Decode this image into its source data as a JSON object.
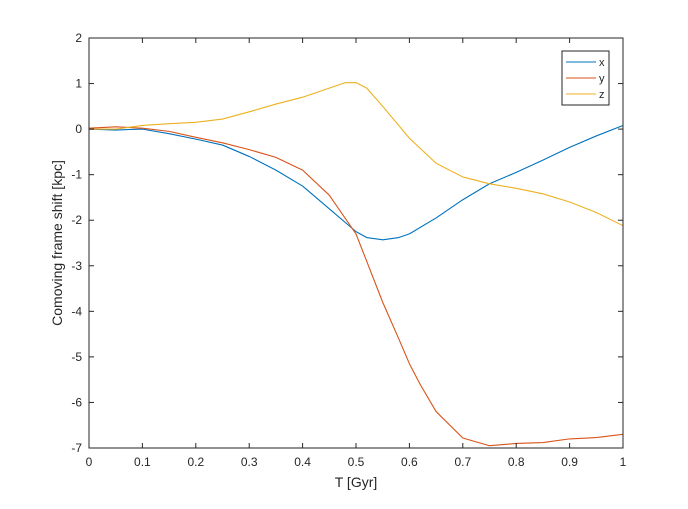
{
  "chart_data": {
    "type": "line",
    "xlabel": "T [Gyr]",
    "ylabel": "Comoving frame shift [kpc]",
    "xlim": [
      0,
      1
    ],
    "ylim": [
      -7,
      2
    ],
    "xticks": [
      "0",
      "0.1",
      "0.2",
      "0.3",
      "0.4",
      "0.5",
      "0.6",
      "0.7",
      "0.8",
      "0.9",
      "1"
    ],
    "yticks": [
      "2",
      "1",
      "0",
      "-1",
      "-2",
      "-3",
      "-4",
      "-5",
      "-6",
      "-7"
    ],
    "grid": false,
    "legend_position": "top-right",
    "series": [
      {
        "name": "x",
        "color": "#0072BD",
        "points": [
          [
            0,
            0.0
          ],
          [
            0.05,
            -0.02
          ],
          [
            0.1,
            0.0
          ],
          [
            0.15,
            -0.1
          ],
          [
            0.2,
            -0.22
          ],
          [
            0.25,
            -0.35
          ],
          [
            0.3,
            -0.6
          ],
          [
            0.35,
            -0.9
          ],
          [
            0.4,
            -1.25
          ],
          [
            0.45,
            -1.75
          ],
          [
            0.5,
            -2.25
          ],
          [
            0.52,
            -2.38
          ],
          [
            0.55,
            -2.43
          ],
          [
            0.58,
            -2.38
          ],
          [
            0.6,
            -2.3
          ],
          [
            0.65,
            -1.95
          ],
          [
            0.7,
            -1.55
          ],
          [
            0.75,
            -1.2
          ],
          [
            0.8,
            -0.95
          ],
          [
            0.85,
            -0.68
          ],
          [
            0.9,
            -0.4
          ],
          [
            0.95,
            -0.15
          ],
          [
            1.0,
            0.08
          ]
        ]
      },
      {
        "name": "y",
        "color": "#D95319",
        "points": [
          [
            0,
            0.02
          ],
          [
            0.05,
            0.05
          ],
          [
            0.1,
            0.02
          ],
          [
            0.15,
            -0.05
          ],
          [
            0.2,
            -0.18
          ],
          [
            0.25,
            -0.3
          ],
          [
            0.3,
            -0.45
          ],
          [
            0.35,
            -0.62
          ],
          [
            0.4,
            -0.9
          ],
          [
            0.45,
            -1.45
          ],
          [
            0.5,
            -2.3
          ],
          [
            0.52,
            -2.9
          ],
          [
            0.55,
            -3.8
          ],
          [
            0.58,
            -4.6
          ],
          [
            0.6,
            -5.15
          ],
          [
            0.62,
            -5.6
          ],
          [
            0.65,
            -6.2
          ],
          [
            0.7,
            -6.78
          ],
          [
            0.75,
            -6.95
          ],
          [
            0.8,
            -6.9
          ],
          [
            0.85,
            -6.88
          ],
          [
            0.9,
            -6.8
          ],
          [
            0.95,
            -6.77
          ],
          [
            1.0,
            -6.7
          ]
        ]
      },
      {
        "name": "z",
        "color": "#EDB120",
        "points": [
          [
            0,
            0.0
          ],
          [
            0.05,
            0.0
          ],
          [
            0.1,
            0.08
          ],
          [
            0.15,
            0.12
          ],
          [
            0.2,
            0.15
          ],
          [
            0.25,
            0.22
          ],
          [
            0.3,
            0.38
          ],
          [
            0.35,
            0.55
          ],
          [
            0.4,
            0.7
          ],
          [
            0.45,
            0.9
          ],
          [
            0.48,
            1.02
          ],
          [
            0.5,
            1.02
          ],
          [
            0.52,
            0.9
          ],
          [
            0.55,
            0.5
          ],
          [
            0.6,
            -0.2
          ],
          [
            0.65,
            -0.75
          ],
          [
            0.7,
            -1.05
          ],
          [
            0.75,
            -1.2
          ],
          [
            0.8,
            -1.3
          ],
          [
            0.85,
            -1.42
          ],
          [
            0.9,
            -1.6
          ],
          [
            0.95,
            -1.83
          ],
          [
            1.0,
            -2.12
          ]
        ]
      }
    ]
  }
}
